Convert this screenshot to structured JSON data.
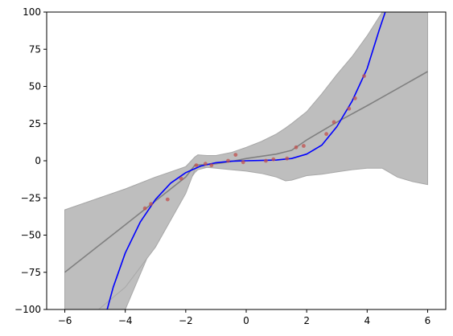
{
  "chart_data": {
    "type": "line",
    "title": "",
    "xlabel": "",
    "ylabel": "",
    "xlim": [
      -6.6,
      6.6
    ],
    "ylim": [
      -100,
      100
    ],
    "xticks": [
      -6,
      -4,
      -2,
      0,
      2,
      4,
      6
    ],
    "xtick_labels": [
      "−6",
      "−4",
      "−2",
      "0",
      "2",
      "4",
      "6"
    ],
    "yticks": [
      -100,
      -75,
      -50,
      -25,
      0,
      25,
      50,
      75,
      100
    ],
    "ytick_labels": [
      "−100",
      "−75",
      "−50",
      "−25",
      "0",
      "25",
      "50",
      "75",
      "100"
    ],
    "grid": false,
    "legend": "none",
    "series": [
      {
        "kind": "band",
        "color": "#bebebe",
        "x": [
          -6,
          -5,
          -4,
          -3,
          -2.3,
          -1.7,
          -1.6,
          -1.3,
          -1,
          -0.5,
          0,
          0.5,
          1,
          1.3,
          1.5,
          2,
          2.5,
          3,
          3.5,
          4,
          4.5,
          5,
          5.5,
          6
        ],
        "lower": [
          -100,
          -100,
          -100,
          -52,
          -25,
          -8,
          -6,
          -4.5,
          -4,
          -2.5,
          -1,
          0.5,
          2,
          3.5,
          2,
          6,
          12,
          17,
          22,
          28,
          33,
          38,
          44,
          49
        ],
        "upper": [
          -33,
          -26,
          -19,
          -11,
          -6.5,
          -1.5,
          -0.5,
          -0.5,
          0,
          2.5,
          4,
          6.5,
          9,
          11,
          14,
          18,
          27,
          38,
          45,
          51,
          57,
          64,
          71,
          76
        ]
      },
      {
        "kind": "band",
        "color": "#bebebe",
        "x": [
          -6,
          -5,
          -4,
          -3,
          -2,
          -1.7,
          -1.6,
          -1.3,
          -1,
          -0.5,
          0,
          0.5,
          1,
          1.3,
          1.5,
          2,
          2.5,
          3,
          3.5,
          4,
          4.5,
          5,
          5.5,
          6
        ],
        "lower": [
          -118,
          -102,
          -85,
          -58,
          -22,
          -6,
          -4,
          -4.5,
          -5,
          -6,
          -7,
          -8.5,
          -11,
          -13.5,
          -13,
          -10,
          -9,
          -7.5,
          -6,
          -5,
          -5,
          -11,
          -14,
          -16
        ],
        "upper": [
          -33,
          -26,
          -19,
          -11,
          -4,
          2.5,
          4,
          3.5,
          3.5,
          5.5,
          9,
          13,
          18,
          22,
          25,
          33,
          45,
          58,
          70,
          84,
          100,
          100,
          100,
          100
        ]
      },
      {
        "kind": "line",
        "color": "#808080",
        "x": [
          -6,
          -4,
          -2,
          -1.7,
          -1.3,
          -1,
          -0.5,
          0,
          0.5,
          1,
          1.3,
          1.5,
          2,
          3,
          4,
          5,
          6
        ],
        "y": [
          -75,
          -43,
          -11,
          -3,
          -2.5,
          -2,
          -0.5,
          1.5,
          3,
          4.5,
          6,
          7,
          14,
          26,
          37,
          48.5,
          60
        ]
      },
      {
        "kind": "line",
        "color": "#0000ff",
        "x": [
          -4.6,
          -4.4,
          -4,
          -3.5,
          -3,
          -2.5,
          -2,
          -1.5,
          -1,
          -0.5,
          0,
          0.5,
          1,
          1.5,
          2,
          2.5,
          3,
          3.5,
          4,
          4.4,
          4.6
        ],
        "y": [
          -100,
          -85,
          -62,
          -41,
          -26,
          -15,
          -8,
          -3.5,
          -1.3,
          -0.3,
          0,
          0.2,
          0.5,
          1.5,
          4.5,
          10.5,
          23,
          40,
          62,
          88,
          100
        ]
      },
      {
        "kind": "scatter",
        "color": "#c0504d",
        "x": [
          -3.35,
          -3.15,
          -2.6,
          -2.15,
          -1.65,
          -1.35,
          -1.15,
          -0.6,
          -0.35,
          -0.1,
          0.65,
          0.9,
          1.35,
          1.65,
          1.9,
          2.65,
          2.9,
          3.4,
          3.6,
          3.9
        ],
        "y": [
          -32,
          -29,
          -26,
          -12,
          -3,
          -2,
          -3,
          0,
          4,
          -1,
          0,
          1,
          1.5,
          9,
          10,
          18,
          26,
          35,
          42,
          57
        ]
      }
    ]
  }
}
